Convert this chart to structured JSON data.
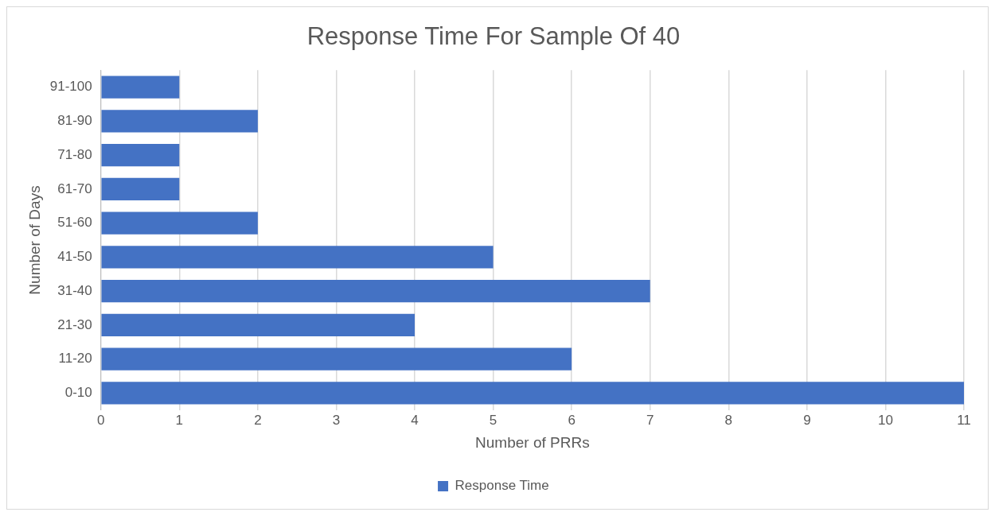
{
  "chart_data": {
    "type": "bar",
    "orientation": "horizontal",
    "title": "Response Time For Sample Of 40",
    "xlabel": "Number of PRRs",
    "ylabel": "Number of Days",
    "categories": [
      "91-100",
      "81-90",
      "71-80",
      "61-70",
      "51-60",
      "41-50",
      "31-40",
      "21-30",
      "11-20",
      "0-10"
    ],
    "series": [
      {
        "name": "Response Time",
        "color": "#4472c4",
        "values": [
          1,
          2,
          1,
          1,
          2,
          5,
          7,
          4,
          6,
          11
        ]
      }
    ],
    "xlim": [
      0,
      11
    ],
    "xticks": [
      0,
      1,
      2,
      3,
      4,
      5,
      6,
      7,
      8,
      9,
      10,
      11
    ],
    "grid": "x",
    "legend": "bottom"
  }
}
